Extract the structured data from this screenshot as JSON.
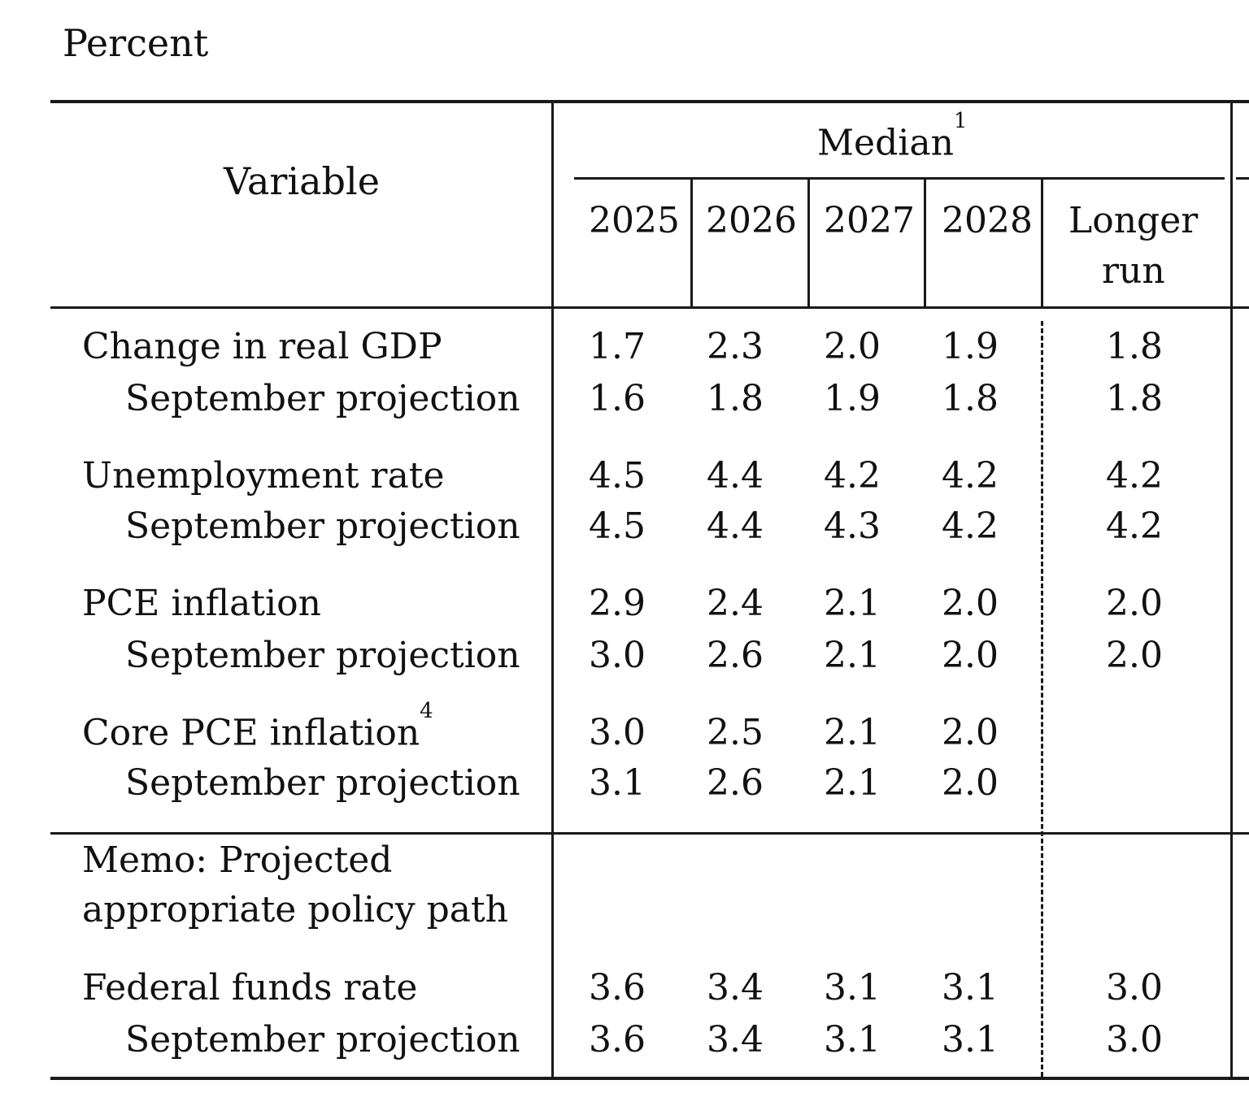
{
  "unit_label": "Percent",
  "header": {
    "variable": "Variable",
    "median": "Median",
    "median_note": "1",
    "years": [
      "2025",
      "2026",
      "2027",
      "2028"
    ],
    "longer_run_line1": "Longer",
    "longer_run_line2": "run"
  },
  "rows": {
    "gdp": {
      "label": "Change in real GDP",
      "values": [
        "1.7",
        "2.3",
        "2.0",
        "1.9",
        "1.8"
      ]
    },
    "gdp_sep": {
      "label": "September projection",
      "values": [
        "1.6",
        "1.8",
        "1.9",
        "1.8",
        "1.8"
      ]
    },
    "unemp": {
      "label": "Unemployment rate",
      "values": [
        "4.5",
        "4.4",
        "4.2",
        "4.2",
        "4.2"
      ]
    },
    "unemp_sep": {
      "label": "September projection",
      "values": [
        "4.5",
        "4.4",
        "4.3",
        "4.2",
        "4.2"
      ]
    },
    "pce": {
      "label": "PCE inflation",
      "values": [
        "2.9",
        "2.4",
        "2.1",
        "2.0",
        "2.0"
      ]
    },
    "pce_sep": {
      "label": "September projection",
      "values": [
        "3.0",
        "2.6",
        "2.1",
        "2.0",
        "2.0"
      ]
    },
    "core": {
      "label": "Core PCE inflation",
      "note": "4",
      "values": [
        "3.0",
        "2.5",
        "2.1",
        "2.0"
      ]
    },
    "core_sep": {
      "label": "September projection",
      "values": [
        "3.1",
        "2.6",
        "2.1",
        "2.0"
      ]
    },
    "memo_line1": "Memo: Projected",
    "memo_line2": "appropriate policy path",
    "ffr": {
      "label": "Federal funds rate",
      "values": [
        "3.6",
        "3.4",
        "3.1",
        "3.1",
        "3.0"
      ]
    },
    "ffr_sep": {
      "label": "September projection",
      "values": [
        "3.6",
        "3.4",
        "3.1",
        "3.1",
        "3.0"
      ]
    }
  }
}
